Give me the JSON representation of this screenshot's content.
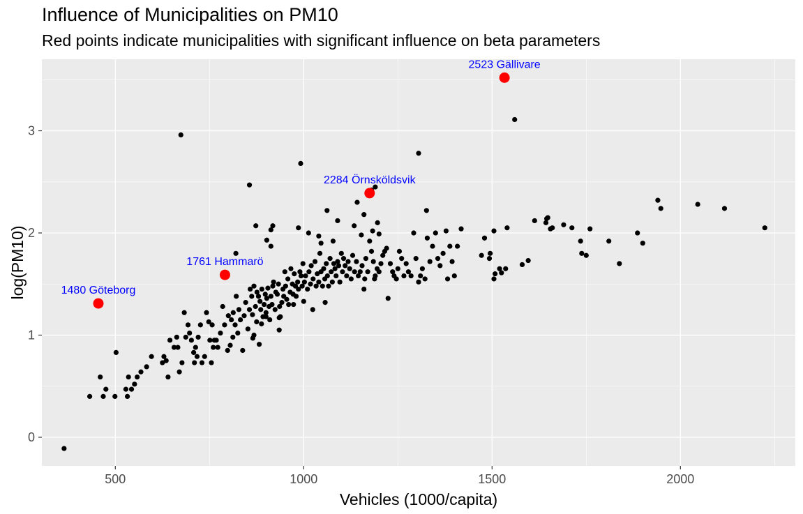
{
  "chart_data": {
    "type": "scatter",
    "title": "Influence of Municipalities on PM10",
    "subtitle": "Red points indicate municipalities with significant influence on beta parameters",
    "xlabel": "Vehicles (1000/capita)",
    "ylabel": "log(PM10)",
    "xlim": [
      305,
      2305
    ],
    "ylim": [
      -0.28,
      3.7
    ],
    "x_ticks": [
      500,
      1000,
      1500,
      2000
    ],
    "y_ticks": [
      0,
      1,
      2,
      3
    ],
    "grid": true,
    "colors": {
      "panel": "#EBEBEB",
      "grid": "#FFFFFF",
      "normal": "#000000",
      "influential": "#FF0000",
      "label": "#0000FF"
    },
    "influential": [
      {
        "id": "2523",
        "name": "Gällivare",
        "label": "2523 Gällivare",
        "x": 1533,
        "y": 3.52
      },
      {
        "id": "2284",
        "name": "Örnsköldsvik",
        "label": "2284 Örnsköldsvik",
        "x": 1175,
        "y": 2.39
      },
      {
        "id": "1761",
        "name": "Hammarö",
        "label": "1761 Hammarö",
        "x": 791,
        "y": 1.59
      },
      {
        "id": "1480",
        "name": "Göteborg",
        "label": "1480 Göteborg",
        "x": 455,
        "y": 1.31
      }
    ],
    "points": [
      [
        364,
        -0.11
      ],
      [
        432,
        0.4
      ],
      [
        460,
        0.59
      ],
      [
        468,
        0.4
      ],
      [
        475,
        0.47
      ],
      [
        499,
        0.4
      ],
      [
        502,
        0.83
      ],
      [
        528,
        0.47
      ],
      [
        532,
        0.4
      ],
      [
        535,
        0.59
      ],
      [
        543,
        0.47
      ],
      [
        551,
        0.52
      ],
      [
        558,
        0.59
      ],
      [
        568,
        0.64
      ],
      [
        583,
        0.69
      ],
      [
        596,
        0.79
      ],
      [
        625,
        0.73
      ],
      [
        629,
        0.79
      ],
      [
        635,
        0.75
      ],
      [
        640,
        0.59
      ],
      [
        645,
        0.95
      ],
      [
        656,
        0.88
      ],
      [
        663,
        0.98
      ],
      [
        666,
        0.88
      ],
      [
        670,
        0.64
      ],
      [
        677,
        0.73
      ],
      [
        683,
        1.22
      ],
      [
        687,
        0.98
      ],
      [
        693,
        1.1
      ],
      [
        697,
        1.02
      ],
      [
        702,
        0.95
      ],
      [
        708,
        0.83
      ],
      [
        710,
        0.73
      ],
      [
        713,
        0.88
      ],
      [
        717,
        0.79
      ],
      [
        720,
        0.98
      ],
      [
        726,
        1.1
      ],
      [
        730,
        0.73
      ],
      [
        737,
        0.79
      ],
      [
        742,
        1.22
      ],
      [
        748,
        1.13
      ],
      [
        751,
        0.95
      ],
      [
        755,
        0.73
      ],
      [
        757,
        1.1
      ],
      [
        760,
        0.88
      ],
      [
        763,
        0.95
      ],
      [
        768,
        0.95
      ],
      [
        772,
        0.88
      ],
      [
        779,
        1.02
      ],
      [
        785,
        1.28
      ],
      [
        790,
        1.1
      ],
      [
        798,
        0.85
      ],
      [
        800,
        1.19
      ],
      [
        805,
        0.9
      ],
      [
        808,
        1.15
      ],
      [
        812,
        0.98
      ],
      [
        813,
        1.22
      ],
      [
        818,
        1.1
      ],
      [
        821,
        1.38
      ],
      [
        825,
        1.02
      ],
      [
        828,
        1.25
      ],
      [
        832,
        1.15
      ],
      [
        838,
        0.85
      ],
      [
        842,
        1.19
      ],
      [
        846,
        1.32
      ],
      [
        852,
        1.06
      ],
      [
        856,
        1.25
      ],
      [
        858,
        1.45
      ],
      [
        862,
        1.38
      ],
      [
        864,
        1.2
      ],
      [
        868,
        1.48
      ],
      [
        872,
        1.28
      ],
      [
        876,
        1.42
      ],
      [
        880,
        1.38
      ],
      [
        884,
        1.33
      ],
      [
        886,
        1.25
      ],
      [
        889,
        1.45
      ],
      [
        892,
        1.18
      ],
      [
        895,
        1.3
      ],
      [
        898,
        1.4
      ],
      [
        900,
        1.22
      ],
      [
        902,
        1.36
      ],
      [
        905,
        1.46
      ],
      [
        908,
        1.28
      ],
      [
        910,
        1.15
      ],
      [
        913,
        1.38
      ],
      [
        916,
        1.3
      ],
      [
        918,
        1.48
      ],
      [
        920,
        1.52
      ],
      [
        924,
        1.25
      ],
      [
        926,
        1.42
      ],
      [
        930,
        1.4
      ],
      [
        933,
        1.5
      ],
      [
        936,
        1.28
      ],
      [
        938,
        1.18
      ],
      [
        942,
        1.32
      ],
      [
        945,
        1.45
      ],
      [
        947,
        1.38
      ],
      [
        950,
        1.62
      ],
      [
        952,
        1.48
      ],
      [
        955,
        1.35
      ],
      [
        958,
        1.55
      ],
      [
        960,
        1.3
      ],
      [
        964,
        1.42
      ],
      [
        966,
        1.65
      ],
      [
        970,
        1.5
      ],
      [
        972,
        1.4
      ],
      [
        975,
        1.6
      ],
      [
        978,
        1.48
      ],
      [
        980,
        1.38
      ],
      [
        984,
        1.52
      ],
      [
        986,
        1.45
      ],
      [
        990,
        1.62
      ],
      [
        993,
        1.58
      ],
      [
        996,
        1.48
      ],
      [
        998,
        1.7
      ],
      [
        1002,
        1.52
      ],
      [
        1005,
        1.58
      ],
      [
        1010,
        1.45
      ],
      [
        1014,
        1.62
      ],
      [
        1018,
        1.5
      ],
      [
        1020,
        1.68
      ],
      [
        1025,
        1.55
      ],
      [
        1030,
        1.72
      ],
      [
        1033,
        1.48
      ],
      [
        1036,
        1.6
      ],
      [
        1040,
        1.52
      ],
      [
        1043,
        1.8
      ],
      [
        1046,
        1.62
      ],
      [
        1050,
        1.48
      ],
      [
        1053,
        1.65
      ],
      [
        1056,
        1.55
      ],
      [
        1060,
        1.7
      ],
      [
        1063,
        1.58
      ],
      [
        1066,
        1.48
      ],
      [
        1070,
        1.75
      ],
      [
        1073,
        1.62
      ],
      [
        1076,
        1.52
      ],
      [
        1080,
        1.7
      ],
      [
        1083,
        1.65
      ],
      [
        1086,
        1.58
      ],
      [
        1090,
        1.72
      ],
      [
        1093,
        1.68
      ],
      [
        1096,
        1.52
      ],
      [
        1100,
        1.8
      ],
      [
        1103,
        1.62
      ],
      [
        1106,
        1.75
      ],
      [
        1110,
        1.68
      ],
      [
        1114,
        1.58
      ],
      [
        1118,
        1.72
      ],
      [
        1122,
        1.65
      ],
      [
        1126,
        1.55
      ],
      [
        1130,
        1.78
      ],
      [
        1135,
        1.62
      ],
      [
        1140,
        1.72
      ],
      [
        1145,
        1.58
      ],
      [
        1150,
        1.62
      ],
      [
        1155,
        1.68
      ],
      [
        1160,
        1.45
      ],
      [
        1162,
        1.55
      ],
      [
        1165,
        1.75
      ],
      [
        1170,
        1.62
      ],
      [
        1175,
        1.92
      ],
      [
        1180,
        1.82
      ],
      [
        1185,
        1.72
      ],
      [
        1190,
        1.58
      ],
      [
        1195,
        1.65
      ],
      [
        1200,
        1.62
      ],
      [
        1205,
        1.7
      ],
      [
        1210,
        1.78
      ],
      [
        1215,
        1.82
      ],
      [
        1220,
        1.85
      ],
      [
        1224,
        1.36
      ],
      [
        1230,
        1.7
      ],
      [
        1236,
        1.62
      ],
      [
        1240,
        1.58
      ],
      [
        1246,
        1.55
      ],
      [
        1250,
        1.65
      ],
      [
        1254,
        1.82
      ],
      [
        1260,
        1.75
      ],
      [
        1266,
        1.58
      ],
      [
        1272,
        1.7
      ],
      [
        1278,
        1.62
      ],
      [
        1285,
        1.58
      ],
      [
        1292,
        2.0
      ],
      [
        1298,
        1.75
      ],
      [
        1305,
        1.52
      ],
      [
        1310,
        1.58
      ],
      [
        1315,
        1.65
      ],
      [
        1322,
        1.55
      ],
      [
        1328,
        1.95
      ],
      [
        1335,
        1.72
      ],
      [
        1342,
        1.87
      ],
      [
        1350,
        2.0
      ],
      [
        1356,
        1.75
      ],
      [
        1362,
        1.68
      ],
      [
        1370,
        1.8
      ],
      [
        1378,
        2.02
      ],
      [
        1382,
        1.55
      ],
      [
        1388,
        1.87
      ],
      [
        1394,
        1.72
      ],
      [
        1400,
        1.58
      ],
      [
        1408,
        1.87
      ],
      [
        1418,
        2.04
      ],
      [
        1472,
        1.78
      ],
      [
        1480,
        1.95
      ],
      [
        1495,
        1.8
      ],
      [
        1505,
        1.55
      ],
      [
        1520,
        1.65
      ],
      [
        1540,
        2.05
      ],
      [
        1596,
        1.73
      ],
      [
        1613,
        2.12
      ],
      [
        1643,
        2.1
      ],
      [
        1648,
        2.15
      ],
      [
        1660,
        2.05
      ],
      [
        1690,
        2.08
      ],
      [
        1712,
        2.05
      ],
      [
        1735,
        1.92
      ],
      [
        1738,
        1.8
      ],
      [
        1750,
        1.78
      ],
      [
        1760,
        2.04
      ],
      [
        1810,
        1.92
      ],
      [
        1838,
        1.7
      ],
      [
        1886,
        2.0
      ],
      [
        1900,
        1.9
      ],
      [
        1940,
        2.32
      ],
      [
        1948,
        2.24
      ],
      [
        2046,
        2.28
      ],
      [
        2117,
        2.24
      ],
      [
        2224,
        2.05
      ],
      [
        856,
        2.47
      ],
      [
        992,
        2.68
      ],
      [
        674,
        2.96
      ],
      [
        1305,
        2.78
      ],
      [
        1560,
        3.11
      ],
      [
        1326,
        2.22
      ],
      [
        1142,
        2.3
      ],
      [
        1190,
        2.45
      ],
      [
        1180,
        2.42
      ],
      [
        1062,
        2.22
      ],
      [
        1160,
        2.18
      ],
      [
        1090,
        2.12
      ],
      [
        1134,
        2.07
      ],
      [
        1196,
        2.1
      ],
      [
        1183,
        2.02
      ],
      [
        1200,
        1.99
      ],
      [
        1153,
        1.98
      ],
      [
        1040,
        1.97
      ],
      [
        1078,
        1.92
      ],
      [
        1013,
        2.0
      ],
      [
        986,
        2.05
      ],
      [
        1046,
        1.9
      ],
      [
        873,
        2.07
      ],
      [
        918,
        2.07
      ],
      [
        913,
        2.03
      ],
      [
        902,
        1.93
      ],
      [
        913,
        1.87
      ],
      [
        820,
        1.8
      ],
      [
        1188,
        1.55
      ],
      [
        1000,
        1.33
      ],
      [
        1024,
        1.25
      ],
      [
        1057,
        1.32
      ],
      [
        973,
        1.3
      ],
      [
        935,
        1.17
      ],
      [
        935,
        1.05
      ],
      [
        875,
        1.13
      ],
      [
        868,
        1.0
      ],
      [
        865,
        0.97
      ],
      [
        882,
        0.91
      ],
      [
        888,
        1.11
      ],
      [
        900,
        1.18
      ],
      [
        1493,
        1.75
      ],
      [
        1508,
        1.6
      ],
      [
        1525,
        1.61
      ],
      [
        1505,
        2.02
      ],
      [
        1536,
        1.65
      ],
      [
        1580,
        1.69
      ],
      [
        1645,
        2.14
      ],
      [
        1655,
        2.04
      ]
    ]
  }
}
